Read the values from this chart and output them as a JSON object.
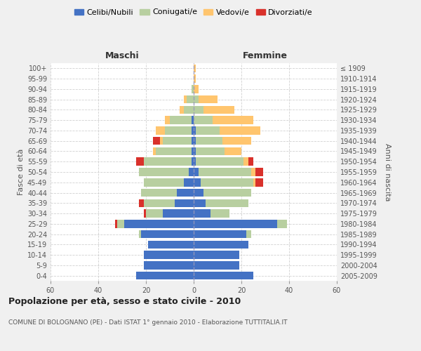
{
  "age_groups": [
    "0-4",
    "5-9",
    "10-14",
    "15-19",
    "20-24",
    "25-29",
    "30-34",
    "35-39",
    "40-44",
    "45-49",
    "50-54",
    "55-59",
    "60-64",
    "65-69",
    "70-74",
    "75-79",
    "80-84",
    "85-89",
    "90-94",
    "95-99",
    "100+"
  ],
  "birth_years": [
    "2005-2009",
    "2000-2004",
    "1995-1999",
    "1990-1994",
    "1985-1989",
    "1980-1984",
    "1975-1979",
    "1970-1974",
    "1965-1969",
    "1960-1964",
    "1955-1959",
    "1950-1954",
    "1945-1949",
    "1940-1944",
    "1935-1939",
    "1930-1934",
    "1925-1929",
    "1920-1924",
    "1915-1919",
    "1910-1914",
    "≤ 1909"
  ],
  "maschi": {
    "celibi": [
      24,
      21,
      21,
      19,
      22,
      29,
      13,
      8,
      7,
      4,
      2,
      1,
      1,
      1,
      1,
      1,
      0,
      0,
      0,
      0,
      0
    ],
    "coniugati": [
      0,
      0,
      0,
      0,
      1,
      3,
      7,
      13,
      15,
      17,
      21,
      20,
      15,
      12,
      11,
      9,
      4,
      3,
      1,
      0,
      0
    ],
    "vedovi": [
      0,
      0,
      0,
      0,
      0,
      0,
      0,
      0,
      0,
      0,
      0,
      0,
      1,
      1,
      4,
      2,
      2,
      1,
      0,
      0,
      0
    ],
    "divorziati": [
      0,
      0,
      0,
      0,
      0,
      1,
      1,
      2,
      0,
      0,
      0,
      3,
      0,
      3,
      0,
      0,
      0,
      0,
      0,
      0,
      0
    ]
  },
  "femmine": {
    "nubili": [
      25,
      19,
      19,
      23,
      22,
      35,
      7,
      5,
      4,
      3,
      2,
      1,
      1,
      1,
      1,
      0,
      0,
      0,
      0,
      0,
      0
    ],
    "coniugate": [
      0,
      0,
      0,
      0,
      2,
      4,
      8,
      18,
      20,
      22,
      22,
      20,
      12,
      11,
      10,
      8,
      4,
      2,
      0,
      0,
      0
    ],
    "vedove": [
      0,
      0,
      0,
      0,
      0,
      0,
      0,
      0,
      0,
      1,
      2,
      2,
      7,
      12,
      17,
      17,
      13,
      8,
      2,
      1,
      1
    ],
    "divorziate": [
      0,
      0,
      0,
      0,
      0,
      0,
      0,
      0,
      0,
      3,
      3,
      2,
      0,
      0,
      0,
      0,
      0,
      0,
      0,
      0,
      0
    ]
  },
  "colors": {
    "celibi_nubili": "#4472c4",
    "coniugati": "#b8cfa0",
    "vedovi": "#ffc56e",
    "divorziati": "#d9312b"
  },
  "xlim": 60,
  "title": "Popolazione per età, sesso e stato civile - 2010",
  "subtitle": "COMUNE DI BOLOGNANO (PE) - Dati ISTAT 1° gennaio 2010 - Elaborazione TUTTITALIA.IT",
  "ylabel_left": "Fasce di età",
  "ylabel_right": "Anni di nascita",
  "xlabel_maschi": "Maschi",
  "xlabel_femmine": "Femmine",
  "background_color": "#f0f0f0",
  "plot_background": "#ffffff",
  "grid_color": "#cccccc"
}
